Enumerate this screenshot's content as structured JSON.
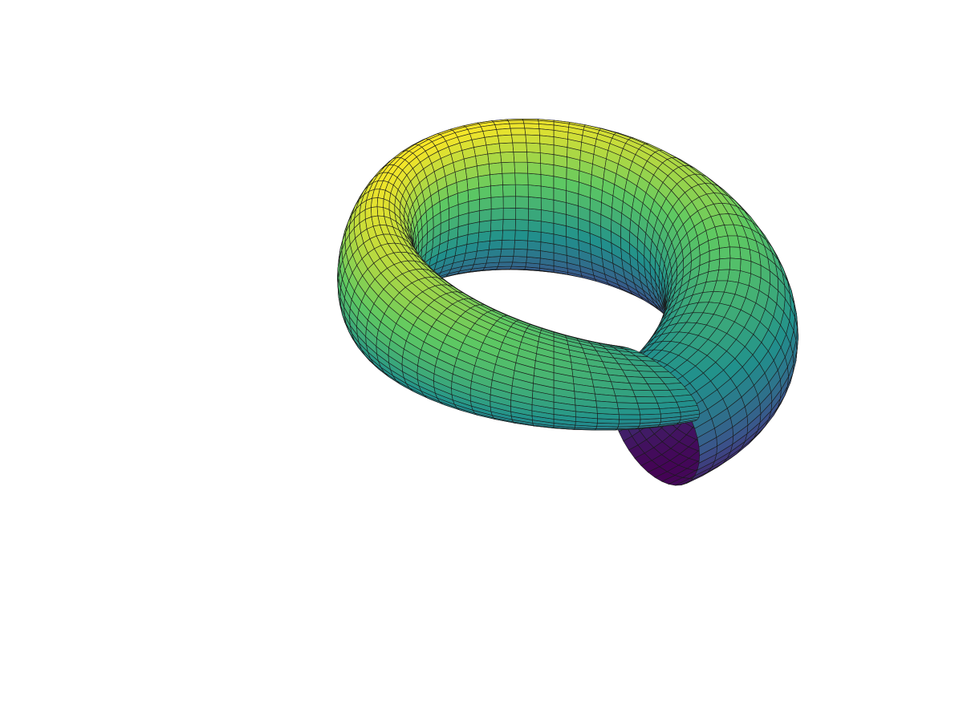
{
  "figure": {
    "kind": "3d-parametric-surface",
    "shape": "twisted torus",
    "colormap": "viridis",
    "background": "#ffffff",
    "mesh_line_color": "#1a1a1a",
    "axes_visible": false,
    "colormap_stops": [
      "#440154",
      "#3b528b",
      "#21918c",
      "#5ec962",
      "#fde725"
    ]
  }
}
